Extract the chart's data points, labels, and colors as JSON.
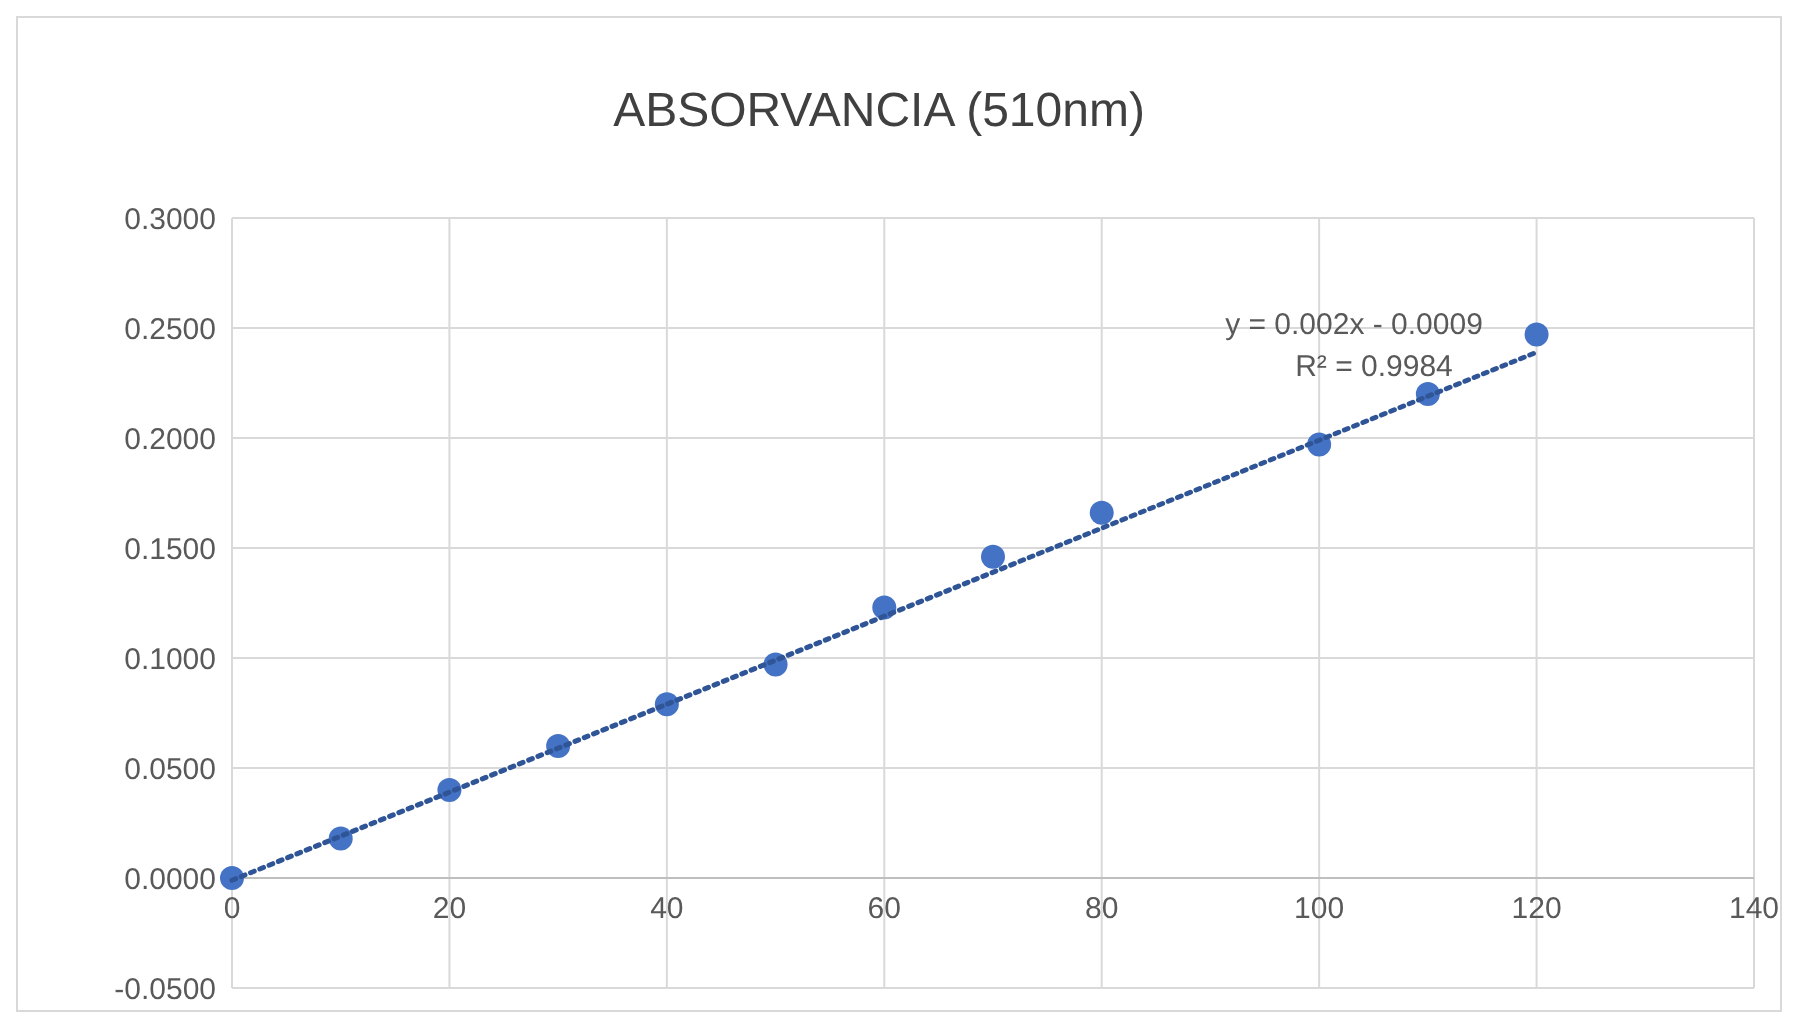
{
  "chart_data": {
    "type": "scatter",
    "title": "ABSORVANCIA (510nm)",
    "marker": "circle",
    "grid": true,
    "xlim": [
      0,
      140
    ],
    "xticks": [
      0,
      20,
      40,
      60,
      80,
      100,
      120,
      140
    ],
    "ylim": [
      -0.05,
      0.3
    ],
    "yticks": [
      {
        "value": -0.05,
        "label": "-0.0500"
      },
      {
        "value": 0,
        "label": "0.0000"
      },
      {
        "value": 0.05,
        "label": "0.0500"
      },
      {
        "value": 0.1,
        "label": "0.1000"
      },
      {
        "value": 0.15,
        "label": "0.1500"
      },
      {
        "value": 0.2,
        "label": "0.2000"
      },
      {
        "value": 0.25,
        "label": "0.2500"
      },
      {
        "value": 0.3,
        "label": "0.3000"
      }
    ],
    "series": [
      {
        "color": "#4472c4",
        "x": [
          0,
          10,
          20,
          30,
          40,
          50,
          60,
          70,
          80,
          100,
          110,
          120
        ],
        "values": [
          0,
          0.018,
          0.04,
          0.06,
          0.079,
          0.097,
          0.123,
          0.146,
          0.166,
          0.197,
          0.22,
          0.247
        ]
      },
      {
        "type": "line",
        "color": "#2f5597",
        "line_style": "dotted",
        "marker": "none",
        "x": [
          0,
          120
        ],
        "values": [
          -0.001,
          0.239
        ]
      }
    ],
    "annotations": [
      "y = 0.002x - 0.0009",
      "R² = 0.9984"
    ]
  }
}
